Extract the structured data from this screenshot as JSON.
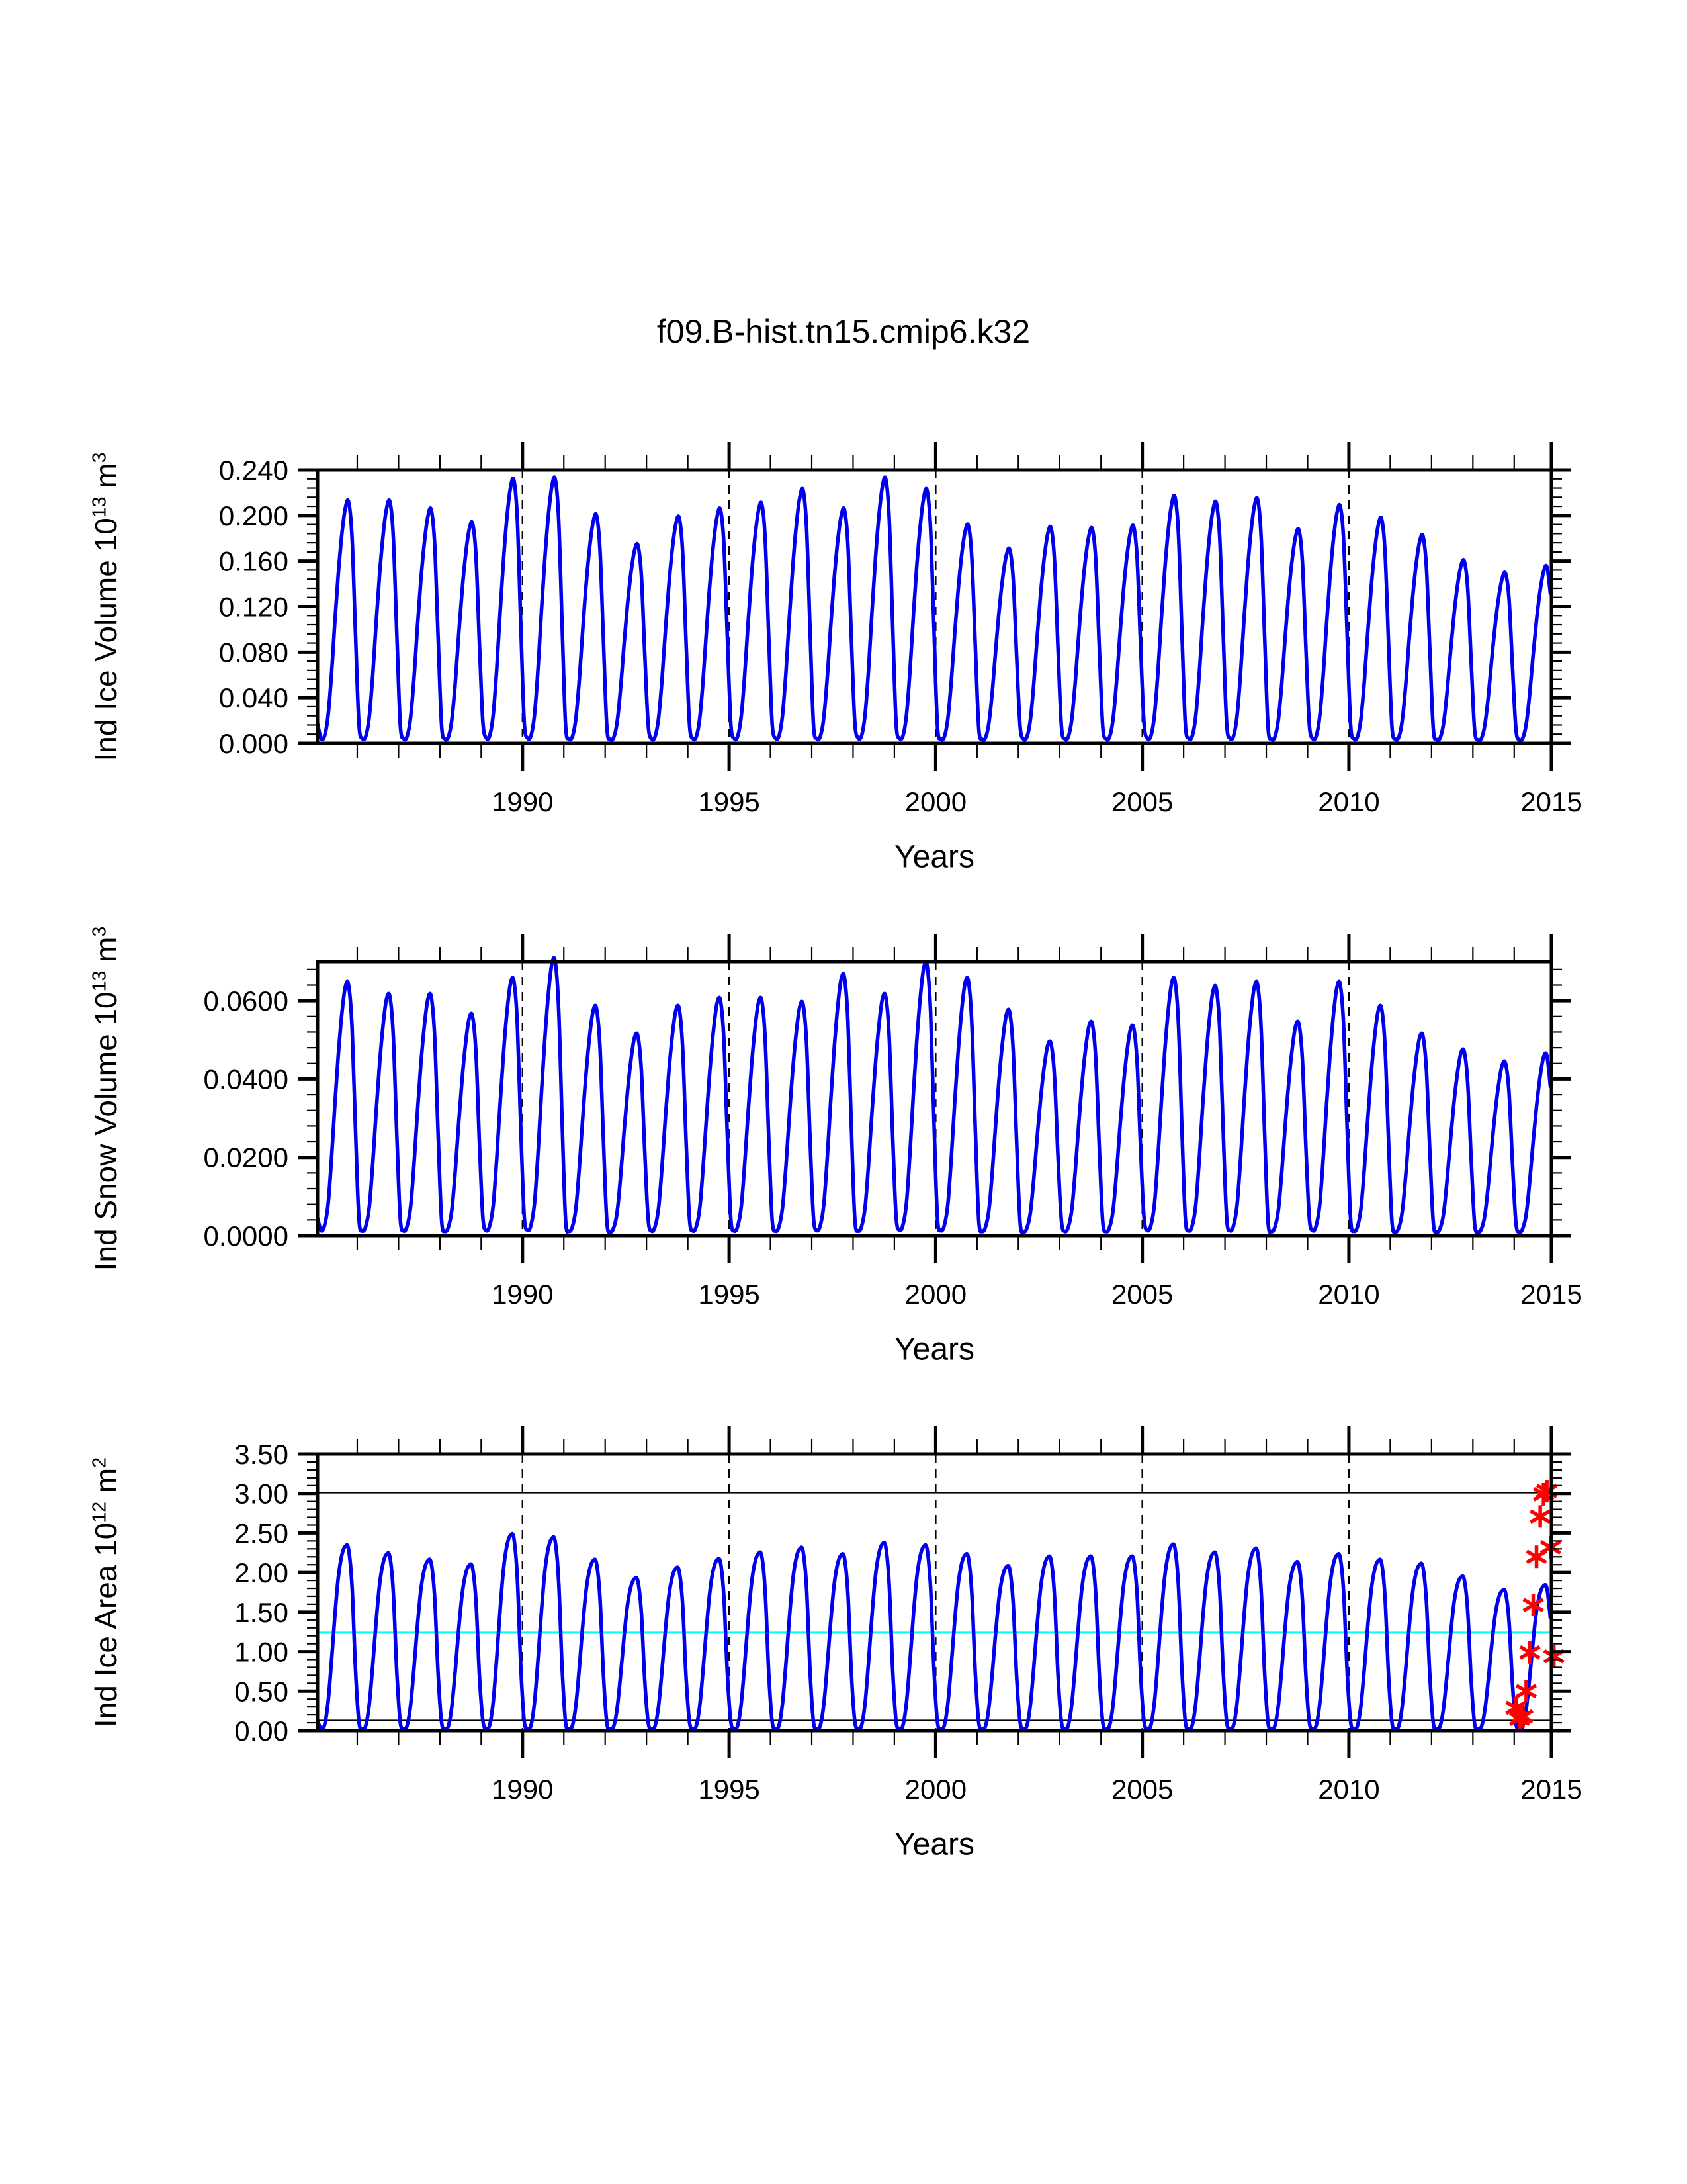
{
  "title": "f09.B-hist.tn15.cmip6.k32",
  "colors": {
    "background": "#ffffff",
    "axis": "#000000",
    "curve": "#0000ee",
    "marker_red": "#ff0000",
    "ref_cyan": "#00ffff"
  },
  "chart_data": [
    {
      "type": "line",
      "panel": "ice-volume",
      "ylabel_text": "Ind Ice Volume 10^13 m^3",
      "ylabel_parts": {
        "base": "Ind Ice Volume 10",
        "exp": "13",
        "unit": " m",
        "unit_exp": "3"
      },
      "xlabel": "Years",
      "x_range": [
        1985.04,
        2014.9
      ],
      "x_major_ticks": [
        1990,
        1995,
        2000,
        2005,
        2010,
        2015
      ],
      "x_tick_labels": [
        "1990",
        "1995",
        "2000",
        "2005",
        "2010",
        "2015"
      ],
      "x_minor_step": 1,
      "dashed_gridline_years": [
        1990,
        1995,
        2000,
        2005,
        2010
      ],
      "y_range": [
        0,
        0.24
      ],
      "y_major_step": 0.04,
      "y_minor_step": 0.008,
      "y_tick_labels": [
        "0.000",
        "0.040",
        "0.080",
        "0.120",
        "0.160",
        "0.200",
        "0.240"
      ],
      "grid": "dashed-vertical-only",
      "legend": "none",
      "series": [
        {
          "name": "monthly mean ice volume",
          "color_key": "curve",
          "time_resolution": "monthly",
          "data_start": "1985-01",
          "data_end": "2014-11",
          "annual_peak_years": [
            1985,
            1986,
            1987,
            1988,
            1989,
            1990,
            1991,
            1992,
            1993,
            1994,
            1995,
            1996,
            1997,
            1998,
            1999,
            2000,
            2001,
            2002,
            2003,
            2004,
            2005,
            2006,
            2007,
            2008,
            2009,
            2010,
            2011,
            2012,
            2013,
            2014
          ],
          "annual_peak_values": [
            0.212,
            0.212,
            0.205,
            0.193,
            0.231,
            0.232,
            0.2,
            0.174,
            0.198,
            0.205,
            0.21,
            0.222,
            0.205,
            0.232,
            0.222,
            0.191,
            0.17,
            0.189,
            0.188,
            0.19,
            0.216,
            0.211,
            0.214,
            0.187,
            0.208,
            0.197,
            0.182,
            0.16,
            0.149,
            0.155
          ],
          "seasonal_profile_monthly": [
            0.08,
            0.02,
            0.03,
            0.11,
            0.28,
            0.5,
            0.7,
            0.86,
            0.97,
            1.0,
            0.85,
            0.45
          ]
        }
      ]
    },
    {
      "type": "line",
      "panel": "snow-volume",
      "ylabel_text": "Ind Snow Volume 10^13 m^3",
      "ylabel_parts": {
        "base": "Ind Snow Volume 10",
        "exp": "13",
        "unit": " m",
        "unit_exp": "3"
      },
      "xlabel": "Years",
      "x_range": [
        1985.04,
        2014.9
      ],
      "x_major_ticks": [
        1990,
        1995,
        2000,
        2005,
        2010,
        2015
      ],
      "x_tick_labels": [
        "1990",
        "1995",
        "2000",
        "2005",
        "2010",
        "2015"
      ],
      "x_minor_step": 1,
      "dashed_gridline_years": [
        1990,
        1995,
        2000,
        2005,
        2010
      ],
      "y_range": [
        0,
        0.07
      ],
      "y_major_step": 0.02,
      "y_minor_step": 0.004,
      "y_tick_labels": [
        "0.0000",
        "0.0200",
        "0.0400",
        "0.0600"
      ],
      "grid": "dashed-vertical-only",
      "legend": "none",
      "series": [
        {
          "name": "monthly mean snow volume",
          "color_key": "curve",
          "time_resolution": "monthly",
          "data_start": "1985-01",
          "data_end": "2014-11",
          "annual_peak_years": [
            1985,
            1986,
            1987,
            1988,
            1989,
            1990,
            1991,
            1992,
            1993,
            1994,
            1995,
            1996,
            1997,
            1998,
            1999,
            2000,
            2001,
            2002,
            2003,
            2004,
            2005,
            2006,
            2007,
            2008,
            2009,
            2010,
            2011,
            2012,
            2013,
            2014
          ],
          "annual_peak_values": [
            0.064,
            0.061,
            0.061,
            0.056,
            0.065,
            0.07,
            0.058,
            0.051,
            0.058,
            0.06,
            0.06,
            0.059,
            0.066,
            0.061,
            0.069,
            0.065,
            0.057,
            0.049,
            0.054,
            0.053,
            0.065,
            0.063,
            0.064,
            0.054,
            0.064,
            0.058,
            0.051,
            0.047,
            0.044,
            0.046
          ],
          "seasonal_profile_monthly": [
            0.07,
            0.02,
            0.04,
            0.12,
            0.3,
            0.52,
            0.72,
            0.88,
            0.99,
            1.0,
            0.83,
            0.42
          ]
        }
      ]
    },
    {
      "type": "line",
      "panel": "ice-area",
      "ylabel_text": "Ind Ice Area 10^12 m^2",
      "ylabel_parts": {
        "base": "Ind Ice Area 10",
        "exp": "12",
        "unit": " m",
        "unit_exp": "2"
      },
      "xlabel": "Years",
      "x_range": [
        1985.04,
        2014.9
      ],
      "x_major_ticks": [
        1990,
        1995,
        2000,
        2005,
        2010,
        2015
      ],
      "x_tick_labels": [
        "1990",
        "1995",
        "2000",
        "2005",
        "2010",
        "2015"
      ],
      "x_minor_step": 1,
      "dashed_gridline_years": [
        1990,
        1995,
        2000,
        2005,
        2010
      ],
      "y_range": [
        0,
        3.5
      ],
      "y_major_step": 0.5,
      "y_minor_step": 0.1,
      "y_tick_labels": [
        "0.00",
        "0.50",
        "1.00",
        "1.50",
        "2.00",
        "2.50",
        "3.00",
        "3.50"
      ],
      "grid": "dashed-vertical-only",
      "legend": "none",
      "series": [
        {
          "name": "monthly mean ice area",
          "color_key": "curve",
          "time_resolution": "monthly",
          "data_start": "1985-01",
          "data_end": "2014-11",
          "annual_peak_years": [
            1985,
            1986,
            1987,
            1988,
            1989,
            1990,
            1991,
            1992,
            1993,
            1994,
            1995,
            1996,
            1997,
            1998,
            1999,
            2000,
            2001,
            2002,
            2003,
            2004,
            2005,
            2006,
            2007,
            2008,
            2009,
            2010,
            2011,
            2012,
            2013,
            2014
          ],
          "annual_peak_values": [
            2.33,
            2.23,
            2.15,
            2.09,
            2.47,
            2.43,
            2.15,
            1.92,
            2.05,
            2.16,
            2.24,
            2.3,
            2.22,
            2.36,
            2.33,
            2.22,
            2.07,
            2.19,
            2.19,
            2.19,
            2.34,
            2.24,
            2.29,
            2.12,
            2.22,
            2.15,
            2.1,
            1.94,
            1.77,
            1.83
          ],
          "seasonal_profile_monthly": [
            0.05,
            0.012,
            0.03,
            0.15,
            0.37,
            0.62,
            0.83,
            0.95,
            1.0,
            0.985,
            0.78,
            0.33
          ]
        }
      ],
      "ref_lines": [
        {
          "y": 3.01,
          "color_key": "axis",
          "width": 2.2
        },
        {
          "y": 1.24,
          "color_key": "ref_cyan",
          "width": 3
        },
        {
          "y": 0.13,
          "color_key": "axis",
          "width": 2.2
        }
      ],
      "obs_markers": {
        "shape": "asterisk",
        "color_key": "marker_red",
        "points": [
          [
            2014.04,
            0.29
          ],
          [
            2014.13,
            0.15
          ],
          [
            2014.21,
            0.18
          ],
          [
            2014.29,
            0.5
          ],
          [
            2014.38,
            0.99
          ],
          [
            2014.46,
            1.59
          ],
          [
            2014.54,
            2.2
          ],
          [
            2014.63,
            2.71
          ],
          [
            2014.71,
            2.99
          ],
          [
            2014.79,
            3.03
          ],
          [
            2014.88,
            2.32
          ],
          [
            2014.96,
            0.94
          ]
        ]
      }
    }
  ]
}
